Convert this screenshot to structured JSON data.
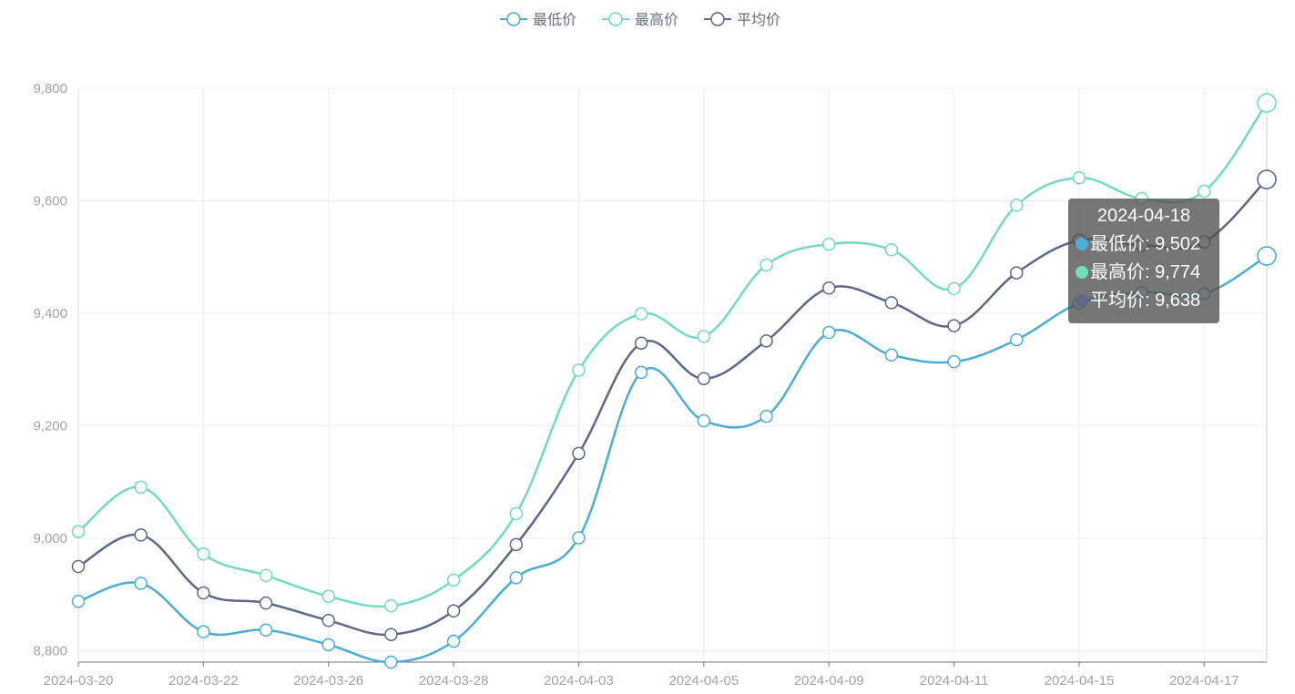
{
  "chart_data": {
    "type": "line",
    "smooth": true,
    "x": [
      "2024-03-20",
      "2024-03-21",
      "2024-03-22",
      "2024-03-25",
      "2024-03-26",
      "2024-03-27",
      "2024-03-28",
      "2024-03-29",
      "2024-04-03",
      "2024-04-04",
      "2024-04-05",
      "2024-04-08",
      "2024-04-09",
      "2024-04-10",
      "2024-04-11",
      "2024-04-12",
      "2024-04-15",
      "2024-04-16",
      "2024-04-17",
      "2024-04-18"
    ],
    "x_tick_labels": [
      "2024-03-20",
      "2024-03-22",
      "2024-03-26",
      "2024-03-28",
      "2024-04-03",
      "2024-04-05",
      "2024-04-09",
      "2024-04-11",
      "2024-04-15",
      "2024-04-17"
    ],
    "ylim": [
      8780,
      9800
    ],
    "y_ticks": [
      8800,
      9000,
      9200,
      9400,
      9600,
      9800
    ],
    "y_tick_labels": [
      "8,800",
      "9,000",
      "9,200",
      "9,400",
      "9,600",
      "9,800"
    ],
    "grid": true,
    "legend_position": "top-center",
    "series": [
      {
        "name": "最低价",
        "color": "#4aadd6",
        "values": [
          8888,
          8920,
          8834,
          8837,
          8811,
          8780,
          8817,
          8930,
          9001,
          9295,
          9209,
          9217,
          9366,
          9326,
          9314,
          9353,
          9418,
          9437,
          9435,
          9502
        ]
      },
      {
        "name": "最高价",
        "color": "#72dbbd",
        "values": [
          9012,
          9091,
          8972,
          8934,
          8897,
          8880,
          8926,
          9044,
          9299,
          9399,
          9359,
          9486,
          9523,
          9513,
          9444,
          9592,
          9641,
          9604,
          9617,
          9774
        ]
      },
      {
        "name": "平均价",
        "color": "#5e6886",
        "values": [
          8950,
          9006,
          8903,
          8885,
          8854,
          8829,
          8871,
          8989,
          9151,
          9347,
          9284,
          9351,
          9445,
          9419,
          9378,
          9472,
          9530,
          9521,
          9527,
          9638
        ]
      }
    ]
  },
  "tooltip": {
    "date": "2024-04-18",
    "rows": [
      {
        "label": "最低价: 9,502",
        "color": "#4aadd6"
      },
      {
        "label": "最高价: 9,774",
        "color": "#72dbbd"
      },
      {
        "label": "平均价: 9,638",
        "color": "#5e6886"
      }
    ]
  }
}
